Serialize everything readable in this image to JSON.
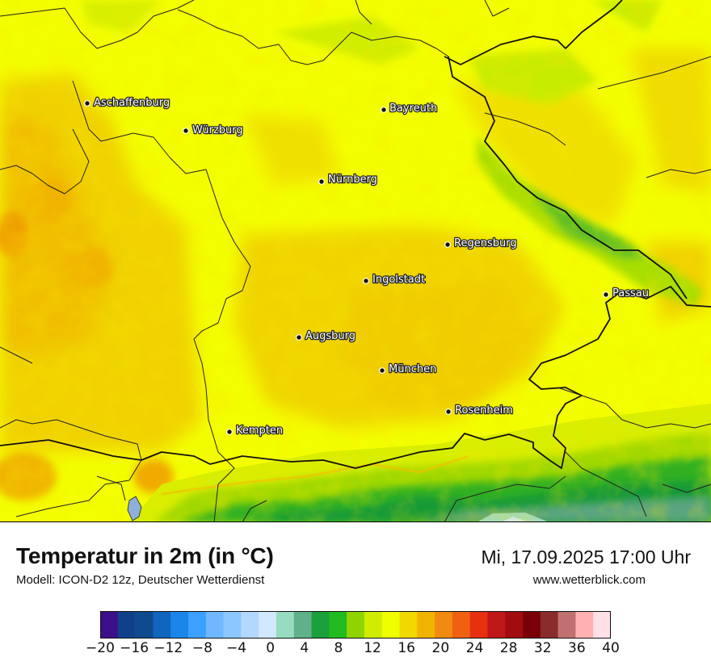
{
  "map": {
    "cities": [
      {
        "name": "Aschaffenburg"
      },
      {
        "name": "Würzburg"
      },
      {
        "name": "Bayreuth"
      },
      {
        "name": "Nürnberg"
      },
      {
        "name": "Regensburg"
      },
      {
        "name": "Ingolstadt"
      },
      {
        "name": "Passau"
      },
      {
        "name": "Augsburg"
      },
      {
        "name": "München"
      },
      {
        "name": "Rosenheim"
      },
      {
        "name": "Kempten"
      }
    ]
  },
  "info": {
    "title": "Temperatur in 2m (in °C)",
    "model": "Modell: ICON-D2 12z, Deutscher Wetterdienst",
    "datetime": "Mi, 17.09.2025 17:00 Uhr",
    "website": "www.wetterblick.com"
  },
  "legend": {
    "ticks": [
      "−20",
      "−16",
      "−12",
      "−8",
      "−4",
      "0",
      "4",
      "8",
      "12",
      "16",
      "20",
      "24",
      "28",
      "32",
      "36",
      "40"
    ],
    "colors": [
      "#3b0f8a",
      "#10408a",
      "#0f4a8e",
      "#1065bd",
      "#1a86ea",
      "#3ba0ff",
      "#6fb8ff",
      "#8cc7ff",
      "#b3d8ff",
      "#d2e8ff",
      "#97dcc0",
      "#60b08a",
      "#1aa03c",
      "#20bb20",
      "#8fd400",
      "#d0ec00",
      "#f0ff00",
      "#f0d800",
      "#f0b400",
      "#f08a10",
      "#f06010",
      "#e63010",
      "#c01818",
      "#a00c10",
      "#7a0008",
      "#8a2c2c",
      "#c07070",
      "#ffb0b0",
      "#ffe0e8"
    ]
  }
}
